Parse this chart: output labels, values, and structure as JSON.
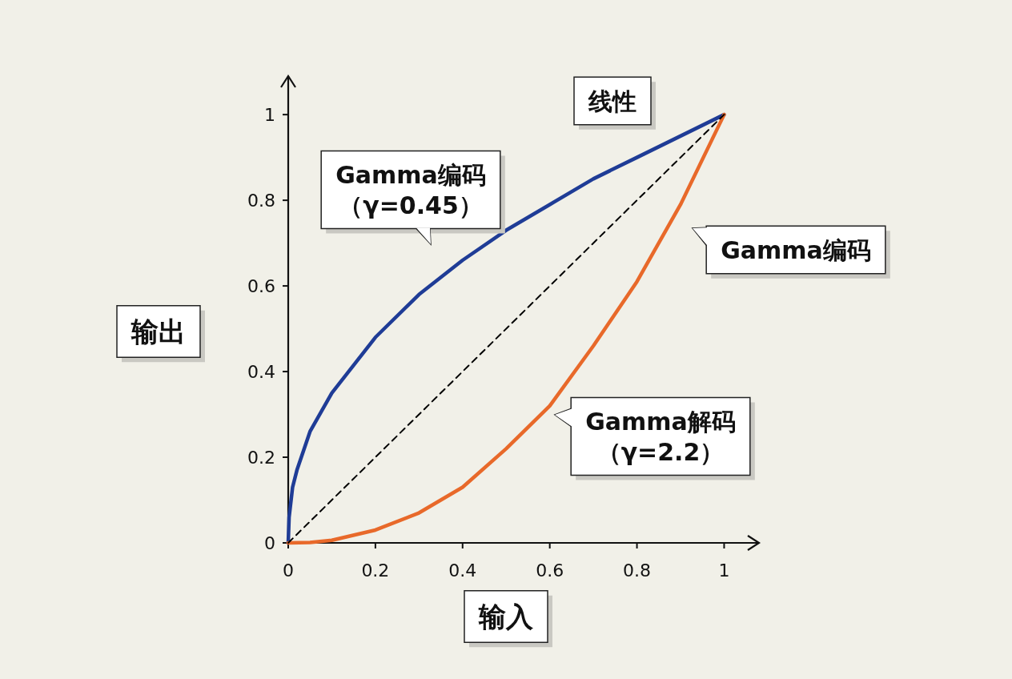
{
  "chart_data": {
    "type": "line",
    "xlabel": "输入",
    "ylabel": "输出",
    "xlim": [
      0,
      1.08
    ],
    "ylim": [
      0,
      1.09
    ],
    "xticks": [
      0,
      0.2,
      0.4,
      0.6,
      0.8,
      1
    ],
    "yticks": [
      0,
      0.2,
      0.4,
      0.6,
      0.8,
      1
    ],
    "grid": false,
    "marker": "none",
    "series": [
      {
        "color": "#1f3c96",
        "line_style": "solid",
        "x": [
          0,
          0.002,
          0.01,
          0.02,
          0.05,
          0.1,
          0.2,
          0.3,
          0.4,
          0.5,
          0.6,
          0.7,
          0.8,
          0.9,
          1
        ],
        "values": [
          0,
          0.06,
          0.13,
          0.17,
          0.26,
          0.35,
          0.48,
          0.58,
          0.66,
          0.73,
          0.79,
          0.85,
          0.9,
          0.95,
          1
        ]
      },
      {
        "color": "#e8692a",
        "line_style": "solid",
        "x": [
          0,
          0.05,
          0.1,
          0.2,
          0.3,
          0.4,
          0.5,
          0.6,
          0.7,
          0.8,
          0.9,
          1
        ],
        "values": [
          0,
          0.001,
          0.006,
          0.03,
          0.07,
          0.13,
          0.22,
          0.32,
          0.46,
          0.61,
          0.79,
          1
        ]
      },
      {
        "color": "#000000",
        "line_style": "dashed",
        "x": [
          0,
          1
        ],
        "values": [
          0,
          1
        ]
      }
    ],
    "annotations": [
      "Gamma编码（γ=0.45）",
      "线性",
      "Gamma编码",
      "Gamma解码（γ=2.2）"
    ]
  }
}
